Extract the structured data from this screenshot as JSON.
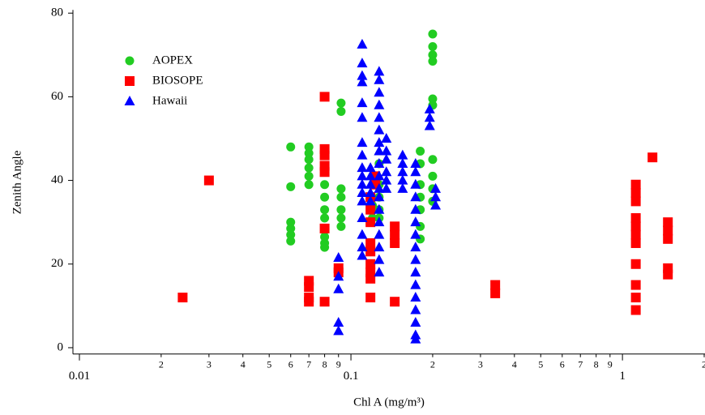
{
  "chart_data": {
    "type": "scatter",
    "x_label": "Chl A (mg/m³)",
    "y_label": "Zenith Angle",
    "log_x": true,
    "grid": false,
    "legend": "upper left",
    "xlim": [
      0.01,
      2
    ],
    "ylim": [
      -1.5,
      80
    ],
    "yticks": [
      0,
      20,
      40,
      60,
      80
    ],
    "xticks": [
      0.01,
      {
        "value": 0.02,
        "label": "2"
      },
      {
        "value": 0.03,
        "label": "3"
      },
      {
        "value": 0.04,
        "label": "4"
      },
      {
        "value": 0.05,
        "label": "5"
      },
      {
        "value": 0.06,
        "label": "6"
      },
      {
        "value": 0.07,
        "label": "7"
      },
      {
        "value": 0.08,
        "label": "8"
      },
      {
        "value": 0.09,
        "label": "9"
      },
      0.1,
      {
        "value": 0.2,
        "label": "2"
      },
      {
        "value": 0.3,
        "label": "3"
      },
      {
        "value": 0.4,
        "label": "4"
      },
      {
        "value": 0.5,
        "label": "5"
      },
      {
        "value": 0.6,
        "label": "6"
      },
      {
        "value": 0.7,
        "label": "7"
      },
      {
        "value": 0.8,
        "label": "8"
      },
      {
        "value": 0.9,
        "label": "9"
      },
      1,
      {
        "value": 2,
        "label": "2"
      }
    ],
    "series": [
      {
        "name": "AOPEX",
        "color": "#22cc22",
        "marker": "circle",
        "x": [
          0.06,
          0.06,
          0.06,
          0.06,
          0.06,
          0.06,
          0.07,
          0.07,
          0.07,
          0.07,
          0.07,
          0.07,
          0.08,
          0.08,
          0.08,
          0.08,
          0.08,
          0.08,
          0.08,
          0.08,
          0.092,
          0.092,
          0.092,
          0.092,
          0.092,
          0.092,
          0.092,
          0.12,
          0.12,
          0.127,
          0.127,
          0.127,
          0.127,
          0.127,
          0.18,
          0.18,
          0.18,
          0.18,
          0.18,
          0.18,
          0.18,
          0.2,
          0.2,
          0.2,
          0.2,
          0.2,
          0.2,
          0.2,
          0.2,
          0.2,
          0.2
        ],
        "values": [
          48,
          38.5,
          30,
          28.5,
          27,
          25.5,
          48,
          46.5,
          45,
          43,
          41,
          39,
          39,
          36,
          33,
          31,
          28,
          26.5,
          25,
          24,
          58.5,
          56.5,
          38,
          36,
          33,
          31,
          29,
          34,
          31,
          44,
          39,
          36,
          33,
          31,
          47,
          44,
          39,
          36,
          33,
          29,
          26,
          75,
          72,
          70,
          68.5,
          59.5,
          58,
          45,
          41,
          38,
          35
        ]
      },
      {
        "name": "BIOSOPE",
        "color": "#ff0000",
        "marker": "square",
        "x": [
          0.024,
          0.03,
          0.07,
          0.07,
          0.07,
          0.07,
          0.08,
          0.08,
          0.08,
          0.08,
          0.08,
          0.08,
          0.08,
          0.09,
          0.09,
          0.118,
          0.118,
          0.118,
          0.118,
          0.118,
          0.118,
          0.118,
          0.118,
          0.118,
          0.123,
          0.123,
          0.145,
          0.145,
          0.145,
          0.145,
          0.34,
          0.34,
          1.12,
          1.12,
          1.12,
          1.12,
          1.12,
          1.12,
          1.12,
          1.12,
          1.12,
          1.12,
          1.12,
          1.29,
          1.47,
          1.47,
          1.47,
          1.47,
          1.47
        ],
        "values": [
          12,
          40,
          16,
          14.5,
          12,
          11,
          60,
          47.5,
          46,
          43.5,
          42,
          28.5,
          11,
          19,
          18,
          36,
          33,
          30,
          25,
          23,
          20,
          18,
          16.5,
          12,
          41,
          39,
          29,
          27,
          25,
          11,
          15,
          13,
          39,
          37,
          35,
          31,
          29,
          27,
          25,
          20,
          15,
          12,
          9,
          45.5,
          30,
          28,
          26,
          19,
          17.5
        ]
      },
      {
        "name": "Hawaii",
        "color": "#0000ff",
        "marker": "triangle",
        "x": [
          0.09,
          0.09,
          0.09,
          0.09,
          0.09,
          0.11,
          0.11,
          0.11,
          0.11,
          0.11,
          0.11,
          0.11,
          0.11,
          0.11,
          0.11,
          0.11,
          0.11,
          0.11,
          0.11,
          0.11,
          0.11,
          0.11,
          0.118,
          0.118,
          0.118,
          0.118,
          0.118,
          0.127,
          0.127,
          0.127,
          0.127,
          0.127,
          0.127,
          0.127,
          0.127,
          0.127,
          0.127,
          0.127,
          0.127,
          0.127,
          0.127,
          0.127,
          0.127,
          0.127,
          0.127,
          0.135,
          0.135,
          0.135,
          0.135,
          0.135,
          0.135,
          0.155,
          0.155,
          0.155,
          0.155,
          0.155,
          0.173,
          0.173,
          0.173,
          0.173,
          0.173,
          0.173,
          0.173,
          0.173,
          0.173,
          0.173,
          0.173,
          0.173,
          0.173,
          0.173,
          0.173,
          0.173,
          0.195,
          0.195,
          0.195,
          0.205,
          0.205,
          0.205
        ],
        "values": [
          21.5,
          17,
          14,
          6,
          4,
          72.5,
          68,
          65,
          63.5,
          58.5,
          55,
          49,
          46,
          43,
          41,
          39,
          37,
          35,
          31,
          27,
          24,
          22,
          43,
          41,
          39,
          37,
          35,
          66,
          64,
          61,
          58,
          55,
          52,
          49,
          47,
          44,
          41,
          38,
          36,
          33,
          30,
          27,
          24,
          21,
          18,
          50,
          47,
          45,
          42,
          40,
          38,
          46,
          44,
          42,
          40,
          38,
          44,
          42,
          39,
          36,
          33,
          30,
          27,
          24,
          21,
          18,
          15,
          12,
          9,
          6,
          3,
          2,
          57,
          55,
          53,
          38,
          36,
          34
        ]
      }
    ]
  }
}
